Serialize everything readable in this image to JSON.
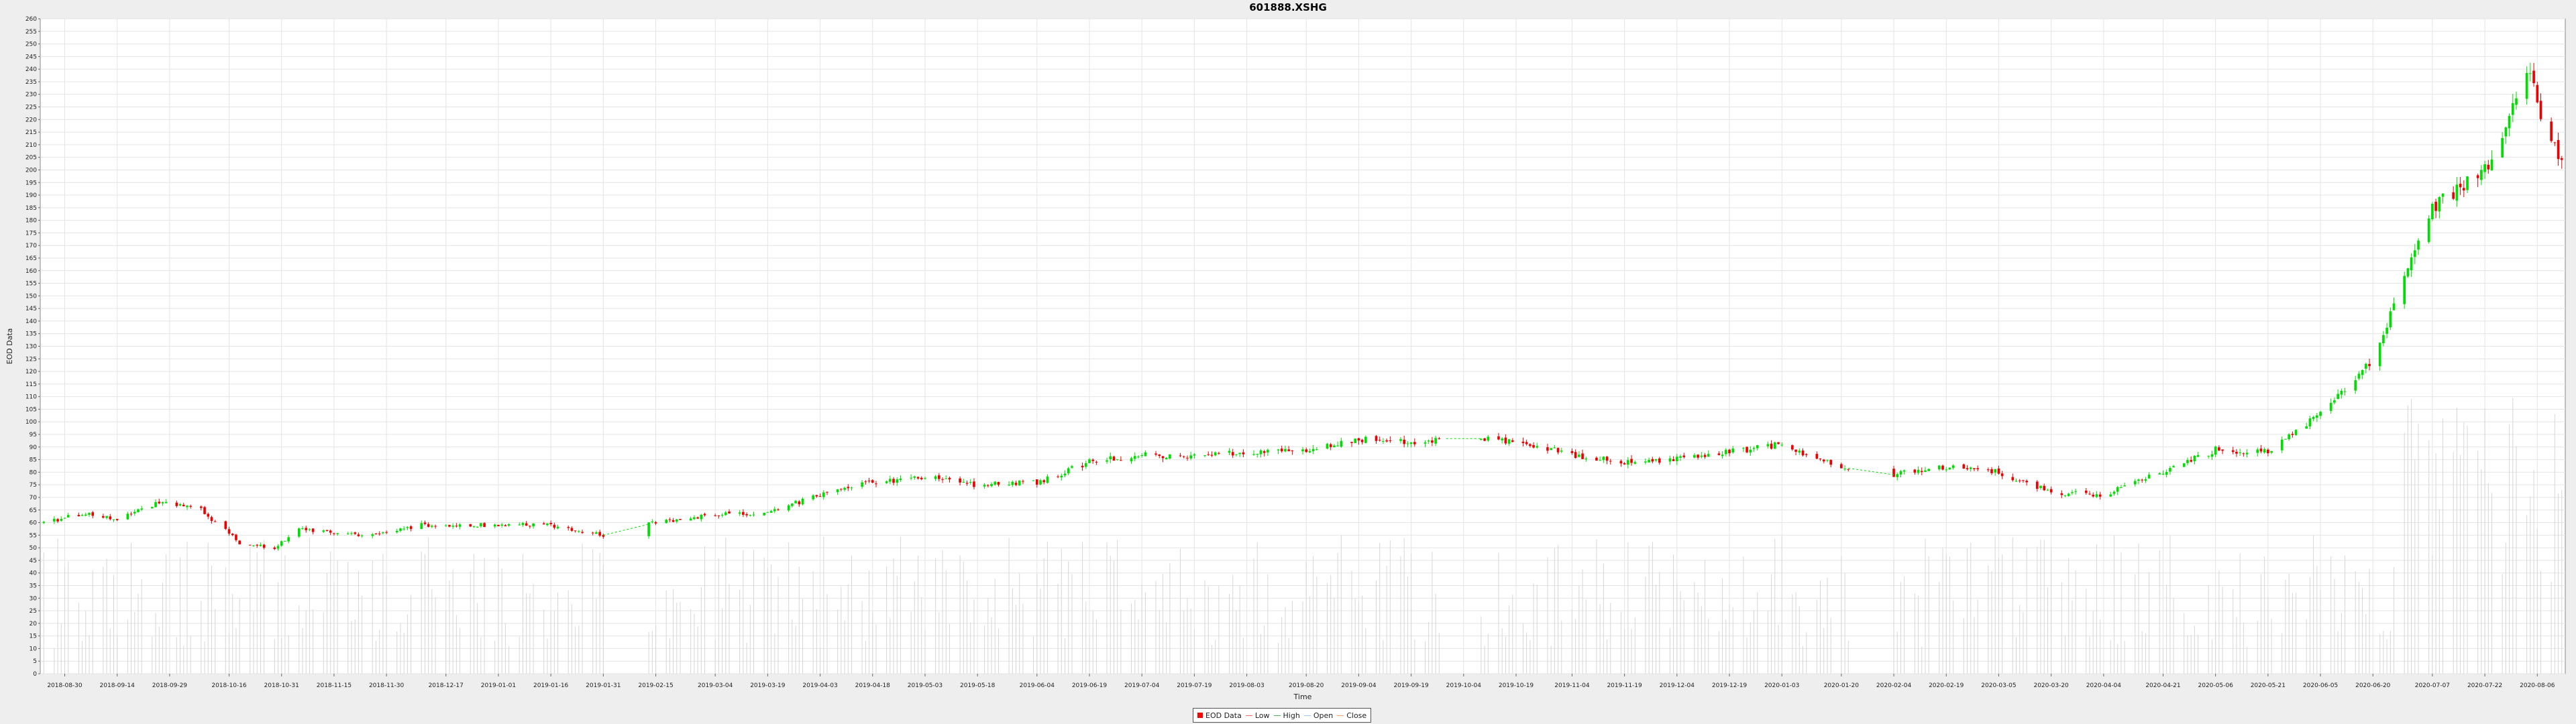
{
  "chart_data": {
    "type": "candlestick",
    "title": "601888.XSHG",
    "xlabel": "Time",
    "ylabel": "EOD Data",
    "ylim": [
      0,
      260
    ],
    "y_ticks": [
      0,
      5,
      10,
      15,
      20,
      25,
      30,
      35,
      40,
      45,
      50,
      55,
      60,
      65,
      70,
      75,
      80,
      85,
      90,
      95,
      100,
      105,
      110,
      115,
      120,
      125,
      130,
      135,
      140,
      145,
      150,
      155,
      160,
      165,
      170,
      175,
      180,
      185,
      190,
      195,
      200,
      205,
      210,
      215,
      220,
      225,
      230,
      235,
      240,
      245,
      250,
      255,
      260
    ],
    "x_ticks": [
      "2018-08-30",
      "2018-09-14",
      "2018-09-29",
      "2018-10-16",
      "2018-10-31",
      "2018-11-15",
      "2018-11-30",
      "2018-12-17",
      "2019-01-01",
      "2019-01-16",
      "2019-01-31",
      "2019-02-15",
      "2019-03-04",
      "2019-03-19",
      "2019-04-03",
      "2019-04-18",
      "2019-05-03",
      "2019-05-18",
      "2019-06-04",
      "2019-06-19",
      "2019-07-04",
      "2019-07-19",
      "2019-08-03",
      "2019-08-20",
      "2019-09-04",
      "2019-09-19",
      "2019-10-04",
      "2019-10-19",
      "2019-11-04",
      "2019-11-19",
      "2019-12-04",
      "2019-12-19",
      "2020-01-03",
      "2020-01-20",
      "2020-02-04",
      "2020-02-19",
      "2020-03-05",
      "2020-03-20",
      "2020-04-04",
      "2020-04-21",
      "2020-05-06",
      "2020-05-21",
      "2020-06-05",
      "2020-06-20",
      "2020-07-07",
      "2020-07-22",
      "2020-08-06"
    ],
    "x_range": [
      "2018-08-23",
      "2020-08-14"
    ],
    "key_close_values": [
      [
        "2018-08-24",
        60
      ],
      [
        "2018-09-05",
        64
      ],
      [
        "2018-09-14",
        61
      ],
      [
        "2018-09-26",
        68
      ],
      [
        "2018-10-08",
        65
      ],
      [
        "2018-10-19",
        52
      ],
      [
        "2018-10-29",
        50
      ],
      [
        "2018-11-05",
        57
      ],
      [
        "2018-11-26",
        55
      ],
      [
        "2018-12-10",
        59
      ],
      [
        "2018-12-28",
        59
      ],
      [
        "2019-01-16",
        59
      ],
      [
        "2019-01-31",
        55
      ],
      [
        "2019-02-15",
        60
      ],
      [
        "2019-03-04",
        63
      ],
      [
        "2019-03-19",
        64
      ],
      [
        "2019-04-03",
        71
      ],
      [
        "2019-04-18",
        76
      ],
      [
        "2019-05-03",
        78
      ],
      [
        "2019-05-18",
        75
      ],
      [
        "2019-06-04",
        76
      ],
      [
        "2019-06-19",
        84
      ],
      [
        "2019-07-04",
        87
      ],
      [
        "2019-07-19",
        86
      ],
      [
        "2019-08-03",
        88
      ],
      [
        "2019-08-20",
        89
      ],
      [
        "2019-09-04",
        93
      ],
      [
        "2019-09-19",
        92
      ],
      [
        "2019-10-04",
        94
      ],
      [
        "2019-10-19",
        92
      ],
      [
        "2019-11-04",
        87
      ],
      [
        "2019-11-19",
        84
      ],
      [
        "2019-12-04",
        85
      ],
      [
        "2019-12-19",
        88
      ],
      [
        "2020-01-03",
        91
      ],
      [
        "2020-01-20",
        82
      ],
      [
        "2020-02-04",
        79
      ],
      [
        "2020-02-19",
        82
      ],
      [
        "2020-03-05",
        80
      ],
      [
        "2020-03-20",
        72
      ],
      [
        "2020-04-04",
        71
      ],
      [
        "2020-04-21",
        80
      ],
      [
        "2020-05-06",
        89
      ],
      [
        "2020-05-21",
        88
      ],
      [
        "2020-06-05",
        103
      ],
      [
        "2020-06-20",
        125
      ],
      [
        "2020-07-07",
        185
      ],
      [
        "2020-07-22",
        200
      ],
      [
        "2020-08-04",
        240
      ],
      [
        "2020-08-06",
        225
      ],
      [
        "2020-08-12",
        205
      ]
    ],
    "gaps": [
      [
        "2019-02-01",
        "2019-02-12"
      ],
      [
        "2019-09-30",
        "2019-10-08"
      ],
      [
        "2020-01-23",
        "2020-02-03"
      ]
    ],
    "volume_range": [
      0,
      120
    ],
    "grid": true,
    "legend": {
      "placement": "bottom-center",
      "items": [
        {
          "label": "EOD Data",
          "kind": "box",
          "color": "#ff0000"
        },
        {
          "label": "Low",
          "kind": "line",
          "color": "#ff6a6a"
        },
        {
          "label": "High",
          "kind": "line",
          "color": "#4caf50"
        },
        {
          "label": "Open",
          "kind": "line",
          "color": "#9fc7ff"
        },
        {
          "label": "Close",
          "kind": "line",
          "color": "#ff9a6a"
        }
      ]
    },
    "colors": {
      "up": "#00dd00",
      "down": "#ee0000",
      "volume": "#d6d6d6",
      "grid": "#e4e4e4",
      "background": "#ffffff"
    }
  }
}
